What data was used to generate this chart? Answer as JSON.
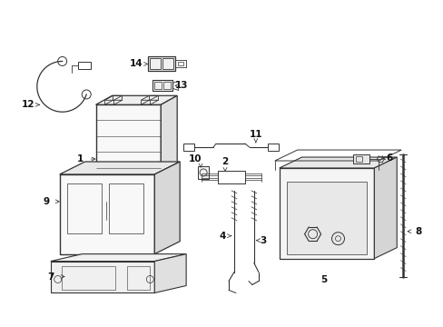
{
  "background_color": "#ffffff",
  "fig_width": 4.89,
  "fig_height": 3.6,
  "dpi": 100,
  "line_color": "#333333",
  "label_fontsize": 7.5,
  "label_fontweight": "bold"
}
